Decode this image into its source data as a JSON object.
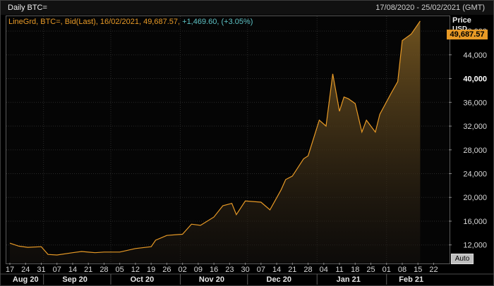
{
  "window": {
    "title": "Daily BTC=",
    "date_range": "17/08/2020 - 25/02/2021 (GMT)"
  },
  "legend": {
    "main": "LineGrd, BTC=, Bid(Last), 16/02/2021, 49,687.57,",
    "change": "+1,469.60, (+3.05%)"
  },
  "axis": {
    "title": "Price",
    "unit": "USD",
    "last_value_label": "49,687.57",
    "auto_button": "Auto"
  },
  "colors": {
    "line": "#e89a26",
    "change_text": "#5ec3c6",
    "background": "#000000"
  },
  "chart_data": {
    "type": "area",
    "series": [
      {
        "x": [
          "2020-08-17",
          "2020-08-21",
          "2020-08-25",
          "2020-08-31",
          "2020-09-03",
          "2020-09-07",
          "2020-09-14",
          "2020-09-18",
          "2020-09-24",
          "2020-09-28",
          "2020-10-05",
          "2020-10-12",
          "2020-10-19",
          "2020-10-21",
          "2020-10-26",
          "2020-11-02",
          "2020-11-06",
          "2020-11-10",
          "2020-11-16",
          "2020-11-20",
          "2020-11-24",
          "2020-11-26",
          "2020-11-30",
          "2020-12-07",
          "2020-12-11",
          "2020-12-16",
          "2020-12-18",
          "2020-12-21",
          "2020-12-26",
          "2020-12-28",
          "2021-01-02",
          "2021-01-05",
          "2021-01-08",
          "2021-01-11",
          "2021-01-13",
          "2021-01-15",
          "2021-01-18",
          "2021-01-21",
          "2021-01-23",
          "2021-01-27",
          "2021-01-29",
          "2021-02-03",
          "2021-02-06",
          "2021-02-08",
          "2021-02-12",
          "2021-02-16"
        ],
        "y": [
          12300,
          11800,
          11600,
          11700,
          10400,
          10300,
          10700,
          10900,
          10700,
          10800,
          10800,
          11400,
          11700,
          12800,
          13600,
          13800,
          15500,
          15300,
          16700,
          18600,
          19000,
          17100,
          19400,
          19200,
          17900,
          21300,
          23000,
          23600,
          26500,
          27000,
          33000,
          32000,
          40800,
          34500,
          36900,
          36600,
          35800,
          31000,
          33000,
          31000,
          34000,
          37500,
          39500,
          46400,
          47500,
          49687.57
        ]
      }
    ],
    "yaxis": {
      "min": 9000,
      "max": 50500,
      "ticks": [
        12000,
        16000,
        20000,
        24000,
        28000,
        32000,
        36000,
        40000,
        44000,
        48000
      ],
      "tick_labels": [
        "12,000",
        "16,000",
        "20,000",
        "24,000",
        "28,000",
        "32,000",
        "36,000",
        "40,000",
        "44,000",
        "48,000"
      ],
      "bold_tick": 40000,
      "position": "right"
    },
    "xaxis": {
      "start": "2020-08-17",
      "end": "2021-02-25",
      "tick_labels": [
        "17",
        "24",
        "31",
        "07",
        "14",
        "21",
        "28",
        "05",
        "12",
        "19",
        "26",
        "02",
        "09",
        "16",
        "23",
        "30",
        "07",
        "14",
        "21",
        "28",
        "04",
        "11",
        "18",
        "25",
        "01",
        "08",
        "15",
        "22"
      ],
      "tick_dates": [
        "2020-08-17",
        "2020-08-24",
        "2020-08-31",
        "2020-09-07",
        "2020-09-14",
        "2020-09-21",
        "2020-09-28",
        "2020-10-05",
        "2020-10-12",
        "2020-10-19",
        "2020-10-26",
        "2020-11-02",
        "2020-11-09",
        "2020-11-16",
        "2020-11-23",
        "2020-11-30",
        "2020-12-07",
        "2020-12-14",
        "2020-12-21",
        "2020-12-28",
        "2021-01-04",
        "2021-01-11",
        "2021-01-18",
        "2021-01-25",
        "2021-02-01",
        "2021-02-08",
        "2021-02-15",
        "2021-02-22"
      ],
      "months": [
        {
          "label": "Aug 20",
          "date": "2020-08-24"
        },
        {
          "label": "Sep 20",
          "date": "2020-09-15"
        },
        {
          "label": "Oct 20",
          "date": "2020-10-15"
        },
        {
          "label": "Nov 20",
          "date": "2020-11-15"
        },
        {
          "label": "Dec 20",
          "date": "2020-12-15"
        },
        {
          "label": "Jan 21",
          "date": "2021-01-15"
        },
        {
          "label": "Feb 21",
          "date": "2021-02-12"
        }
      ],
      "month_boundaries": [
        "2020-09-01",
        "2020-10-01",
        "2020-11-01",
        "2020-12-01",
        "2021-01-01",
        "2021-02-01"
      ]
    },
    "grid": true,
    "fill": "gradient"
  }
}
